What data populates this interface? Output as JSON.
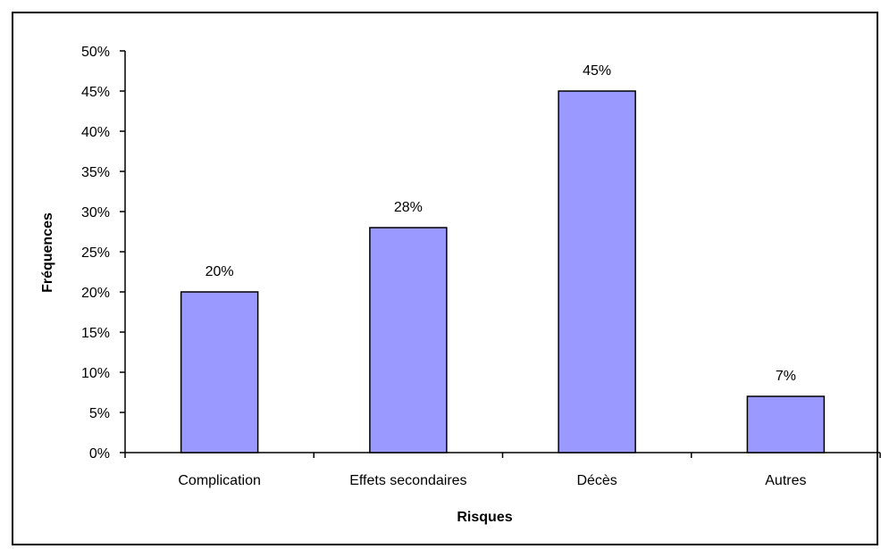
{
  "chart_data": {
    "type": "bar",
    "title": "",
    "xlabel": "Risques",
    "ylabel": "Fréquences",
    "categories": [
      "Complication",
      "Effets secondaires",
      "Décès",
      "Autres"
    ],
    "values": [
      20,
      28,
      45,
      7
    ],
    "data_labels": [
      "20%",
      "28%",
      "45%",
      "7%"
    ],
    "ylim": [
      0,
      50
    ],
    "yticks": [
      0,
      5,
      10,
      15,
      20,
      25,
      30,
      35,
      40,
      45,
      50
    ],
    "ytick_labels": [
      "0%",
      "5%",
      "10%",
      "15%",
      "20%",
      "25%",
      "30%",
      "35%",
      "40%",
      "45%",
      "50%"
    ],
    "grid": false,
    "legend": "none",
    "colors": {
      "bar_fill": "#9999ff",
      "bar_stroke": "#000000",
      "axis": "#000000",
      "frame": "#000000"
    }
  }
}
